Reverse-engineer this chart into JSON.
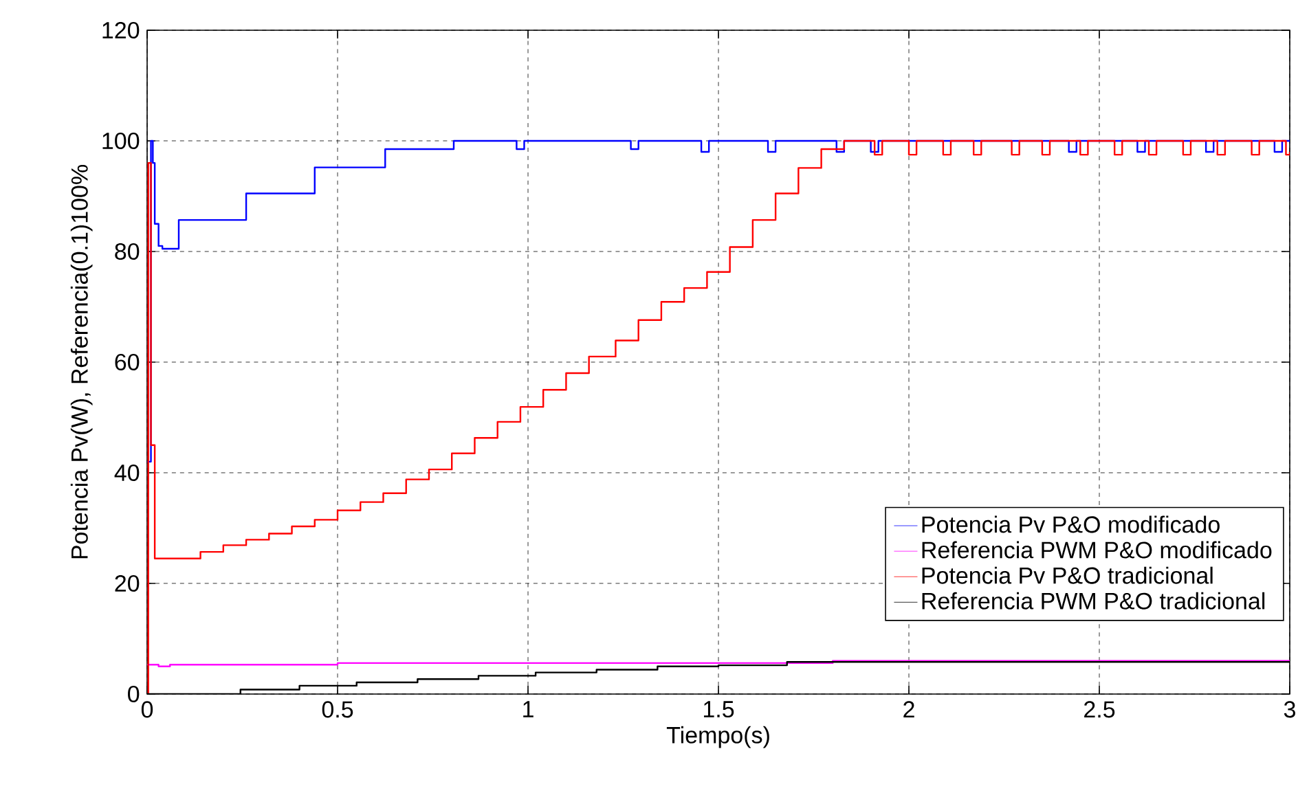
{
  "chart_data": {
    "type": "step",
    "xlabel": "Tiempo(s)",
    "ylabel": "Potencia Pv(W), Referencia(0.1)100%",
    "xlim": [
      0,
      3
    ],
    "ylim": [
      0,
      120
    ],
    "xticks": [
      0,
      0.5,
      1,
      1.5,
      2,
      2.5,
      3
    ],
    "yticks": [
      0,
      20,
      40,
      60,
      80,
      100,
      120
    ],
    "grid": true,
    "legend": "bottom right",
    "series": [
      {
        "name": "Potencia Pv P&O modificado",
        "color": "#0000ff",
        "x": [
          0,
          0.01,
          0.015,
          0.02,
          0.03,
          0.04,
          0.083,
          0.26,
          0.44,
          0.625,
          0.805,
          0.97,
          0.99,
          1.27,
          1.29,
          1.455,
          1.475,
          1.63,
          1.65,
          1.81,
          1.83,
          1.9,
          1.92,
          2.42,
          2.44,
          2.6,
          2.62,
          2.78,
          2.8,
          2.96,
          2.98,
          3
        ],
        "values": [
          42,
          100,
          96,
          85,
          81,
          80.5,
          85.7,
          90.5,
          95.2,
          98.5,
          100,
          98.5,
          100,
          98.5,
          100,
          98,
          100,
          98,
          100,
          98,
          100,
          98,
          100,
          98,
          100,
          98,
          100,
          98,
          100,
          98,
          100,
          100
        ]
      },
      {
        "name": "Referencia PWM P&O modificado",
        "color": "#ff00ff",
        "x": [
          0,
          0.03,
          0.06,
          0.5,
          1.8,
          3
        ],
        "values": [
          5.3,
          5.0,
          5.3,
          5.6,
          6.0,
          6.0
        ]
      },
      {
        "name": "Potencia Pv P&O tradicional",
        "color": "#ff0000",
        "x": [
          0,
          0.003,
          0.01,
          0.02,
          0.14,
          0.2,
          0.26,
          0.32,
          0.38,
          0.44,
          0.5,
          0.56,
          0.62,
          0.68,
          0.74,
          0.8,
          0.86,
          0.92,
          0.98,
          1.04,
          1.1,
          1.16,
          1.23,
          1.29,
          1.35,
          1.41,
          1.47,
          1.53,
          1.59,
          1.65,
          1.71,
          1.77,
          1.83,
          1.91,
          1.93,
          2.0,
          2.02,
          2.09,
          2.11,
          2.17,
          2.19,
          2.27,
          2.29,
          2.35,
          2.37,
          2.45,
          2.47,
          2.54,
          2.56,
          2.63,
          2.65,
          2.72,
          2.74,
          2.81,
          2.83,
          2.9,
          2.92,
          2.99,
          3
        ],
        "values": [
          0,
          96,
          45,
          24.5,
          25.7,
          26.9,
          27.9,
          29.0,
          30.3,
          31.5,
          33.2,
          34.7,
          36.3,
          38.8,
          40.6,
          43.5,
          46.3,
          49.2,
          51.9,
          55.0,
          58.0,
          61.0,
          63.9,
          67.6,
          70.9,
          73.4,
          76.3,
          80.8,
          85.7,
          90.5,
          95.1,
          98.5,
          100,
          97.5,
          100,
          97.5,
          100,
          97.5,
          100,
          97.5,
          100,
          97.5,
          100,
          97.5,
          100,
          97.5,
          100,
          97.5,
          100,
          97.5,
          100,
          97.5,
          100,
          97.5,
          100,
          97.5,
          100,
          97.5,
          98
        ]
      },
      {
        "name": "Referencia PWM P&O tradicional",
        "color": "#000000",
        "x": [
          0,
          0.245,
          0.4,
          0.55,
          0.71,
          0.87,
          1.02,
          1.18,
          1.34,
          1.5,
          1.68,
          3
        ],
        "values": [
          0,
          0.8,
          1.5,
          2.1,
          2.7,
          3.3,
          3.9,
          4.4,
          5.0,
          5.2,
          5.8,
          5.8
        ]
      }
    ]
  }
}
